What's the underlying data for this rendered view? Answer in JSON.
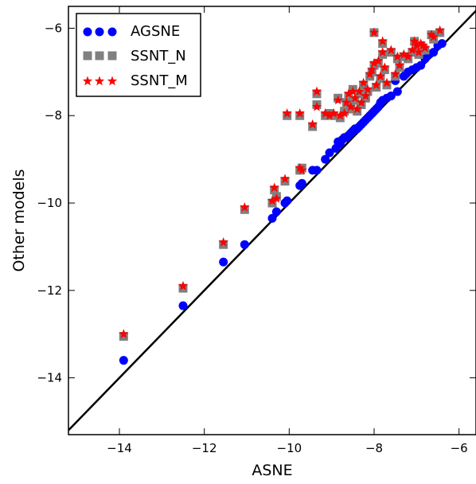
{
  "chart_data": {
    "type": "scatter",
    "title": "",
    "xlabel": "ASNE",
    "ylabel": "Other models",
    "xlim": [
      -15.2,
      -5.6
    ],
    "ylim": [
      -15.3,
      -5.5
    ],
    "xticks": [
      -14,
      -12,
      -10,
      -8,
      -6
    ],
    "yticks": [
      -14,
      -12,
      -10,
      -8,
      -6
    ],
    "x_tick_labels": [
      "−14",
      "−12",
      "−10",
      "−8",
      "−6"
    ],
    "y_tick_labels": [
      "−14",
      "−12",
      "−10",
      "−8",
      "−6"
    ],
    "grid": false,
    "legend_position": "top-left",
    "reference_line": "y = x",
    "colors": {
      "agsne": "#0000ff",
      "ssnt_n": "#808080",
      "ssnt_m": "#ff0000",
      "line": "#000000"
    },
    "series": [
      {
        "name": "AGSNE",
        "marker": "circle",
        "points": [
          [
            -13.9,
            -13.6
          ],
          [
            -12.5,
            -12.35
          ],
          [
            -11.55,
            -11.35
          ],
          [
            -11.05,
            -10.95
          ],
          [
            -10.4,
            -10.35
          ],
          [
            -10.3,
            -10.2
          ],
          [
            -10.1,
            -10.0
          ],
          [
            -10.05,
            -9.95
          ],
          [
            -9.75,
            -9.6
          ],
          [
            -9.7,
            -9.55
          ],
          [
            -9.45,
            -9.25
          ],
          [
            -9.35,
            -9.25
          ],
          [
            -9.15,
            -9.0
          ],
          [
            -9.05,
            -8.85
          ],
          [
            -8.9,
            -8.75
          ],
          [
            -8.85,
            -8.6
          ],
          [
            -8.8,
            -8.65
          ],
          [
            -8.75,
            -8.55
          ],
          [
            -8.7,
            -8.5
          ],
          [
            -8.65,
            -8.5
          ],
          [
            -8.6,
            -8.45
          ],
          [
            -8.55,
            -8.4
          ],
          [
            -8.5,
            -8.35
          ],
          [
            -8.45,
            -8.3
          ],
          [
            -8.4,
            -8.3
          ],
          [
            -8.35,
            -8.25
          ],
          [
            -8.3,
            -8.2
          ],
          [
            -8.25,
            -8.15
          ],
          [
            -8.2,
            -8.1
          ],
          [
            -8.15,
            -8.05
          ],
          [
            -8.1,
            -8.0
          ],
          [
            -8.05,
            -7.95
          ],
          [
            -8.0,
            -7.9
          ],
          [
            -7.95,
            -7.85
          ],
          [
            -7.9,
            -7.8
          ],
          [
            -7.85,
            -7.7
          ],
          [
            -7.8,
            -7.65
          ],
          [
            -7.7,
            -7.6
          ],
          [
            -7.6,
            -7.55
          ],
          [
            -7.45,
            -7.45
          ],
          [
            -7.3,
            -7.1
          ],
          [
            -7.25,
            -7.05
          ],
          [
            -7.2,
            -7.0
          ],
          [
            -7.1,
            -6.95
          ],
          [
            -7.0,
            -6.9
          ],
          [
            -6.9,
            -6.85
          ],
          [
            -6.8,
            -6.7
          ],
          [
            -6.7,
            -6.6
          ],
          [
            -6.6,
            -6.55
          ],
          [
            -6.5,
            -6.4
          ],
          [
            -6.4,
            -6.35
          ],
          [
            -7.5,
            -7.2
          ]
        ]
      },
      {
        "name": "SSNT_N",
        "marker": "square",
        "points": [
          [
            -13.9,
            -13.05
          ],
          [
            -12.5,
            -11.95
          ],
          [
            -11.55,
            -10.95
          ],
          [
            -11.05,
            -10.15
          ],
          [
            -10.4,
            -10.0
          ],
          [
            -10.35,
            -9.7
          ],
          [
            -10.3,
            -9.85
          ],
          [
            -10.1,
            -9.5
          ],
          [
            -9.75,
            -9.25
          ],
          [
            -9.7,
            -9.2
          ],
          [
            -10.05,
            -8.0
          ],
          [
            -9.75,
            -8.0
          ],
          [
            -9.45,
            -8.25
          ],
          [
            -9.35,
            -7.75
          ],
          [
            -9.35,
            -7.5
          ],
          [
            -9.15,
            -8.0
          ],
          [
            -9.05,
            -7.95
          ],
          [
            -8.95,
            -8.0
          ],
          [
            -8.85,
            -7.6
          ],
          [
            -8.8,
            -8.05
          ],
          [
            -8.7,
            -7.9
          ],
          [
            -8.65,
            -7.7
          ],
          [
            -8.6,
            -7.55
          ],
          [
            -8.55,
            -7.85
          ],
          [
            -8.5,
            -7.4
          ],
          [
            -8.45,
            -7.65
          ],
          [
            -8.4,
            -7.9
          ],
          [
            -8.35,
            -7.5
          ],
          [
            -8.3,
            -7.75
          ],
          [
            -8.25,
            -7.3
          ],
          [
            -8.2,
            -7.6
          ],
          [
            -8.15,
            -7.45
          ],
          [
            -8.1,
            -7.1
          ],
          [
            -8.05,
            -7.0
          ],
          [
            -8.0,
            -6.85
          ],
          [
            -7.95,
            -7.35
          ],
          [
            -7.9,
            -6.8
          ],
          [
            -7.85,
            -7.15
          ],
          [
            -7.8,
            -6.6
          ],
          [
            -7.75,
            -6.95
          ],
          [
            -7.7,
            -7.3
          ],
          [
            -7.6,
            -6.55
          ],
          [
            -7.5,
            -7.1
          ],
          [
            -7.45,
            -6.7
          ],
          [
            -7.4,
            -6.9
          ],
          [
            -7.3,
            -6.65
          ],
          [
            -7.2,
            -6.7
          ],
          [
            -7.1,
            -6.55
          ],
          [
            -7.05,
            -6.3
          ],
          [
            -7.0,
            -6.45
          ],
          [
            -6.95,
            -6.6
          ],
          [
            -6.9,
            -6.4
          ],
          [
            -6.85,
            -6.45
          ],
          [
            -6.8,
            -6.5
          ],
          [
            -6.65,
            -6.15
          ],
          [
            -6.6,
            -6.25
          ],
          [
            -6.45,
            -6.1
          ],
          [
            -8.0,
            -6.1
          ],
          [
            -7.8,
            -6.35
          ]
        ]
      },
      {
        "name": "SSNT_M",
        "marker": "star",
        "points": [
          [
            -13.9,
            -13.0
          ],
          [
            -12.5,
            -11.9
          ],
          [
            -11.55,
            -10.9
          ],
          [
            -11.05,
            -10.1
          ],
          [
            -10.4,
            -9.95
          ],
          [
            -10.35,
            -9.65
          ],
          [
            -10.3,
            -9.9
          ],
          [
            -10.1,
            -9.45
          ],
          [
            -9.75,
            -9.2
          ],
          [
            -9.7,
            -9.25
          ],
          [
            -10.05,
            -7.95
          ],
          [
            -9.75,
            -7.95
          ],
          [
            -9.45,
            -8.2
          ],
          [
            -9.35,
            -7.8
          ],
          [
            -9.35,
            -7.45
          ],
          [
            -9.15,
            -7.95
          ],
          [
            -9.05,
            -8.0
          ],
          [
            -8.95,
            -7.95
          ],
          [
            -8.85,
            -7.65
          ],
          [
            -8.8,
            -8.0
          ],
          [
            -8.7,
            -7.95
          ],
          [
            -8.65,
            -7.7
          ],
          [
            -8.6,
            -7.5
          ],
          [
            -8.55,
            -7.8
          ],
          [
            -8.5,
            -7.45
          ],
          [
            -8.45,
            -7.6
          ],
          [
            -8.4,
            -7.85
          ],
          [
            -8.35,
            -7.45
          ],
          [
            -8.3,
            -7.7
          ],
          [
            -8.25,
            -7.25
          ],
          [
            -8.2,
            -7.55
          ],
          [
            -8.15,
            -7.4
          ],
          [
            -8.1,
            -7.05
          ],
          [
            -8.05,
            -6.95
          ],
          [
            -8.0,
            -6.8
          ],
          [
            -7.95,
            -7.3
          ],
          [
            -7.9,
            -6.75
          ],
          [
            -7.85,
            -7.1
          ],
          [
            -7.8,
            -6.55
          ],
          [
            -7.75,
            -6.9
          ],
          [
            -7.7,
            -7.25
          ],
          [
            -7.6,
            -6.5
          ],
          [
            -7.5,
            -7.05
          ],
          [
            -7.45,
            -6.65
          ],
          [
            -7.4,
            -6.85
          ],
          [
            -7.3,
            -6.6
          ],
          [
            -7.2,
            -6.65
          ],
          [
            -7.1,
            -6.5
          ],
          [
            -7.05,
            -6.3
          ],
          [
            -7.0,
            -6.4
          ],
          [
            -6.95,
            -6.55
          ],
          [
            -6.9,
            -6.35
          ],
          [
            -6.85,
            -6.4
          ],
          [
            -6.8,
            -6.45
          ],
          [
            -6.65,
            -6.15
          ],
          [
            -6.6,
            -6.2
          ],
          [
            -6.45,
            -6.05
          ],
          [
            -8.0,
            -6.1
          ],
          [
            -7.8,
            -6.3
          ]
        ]
      }
    ]
  }
}
